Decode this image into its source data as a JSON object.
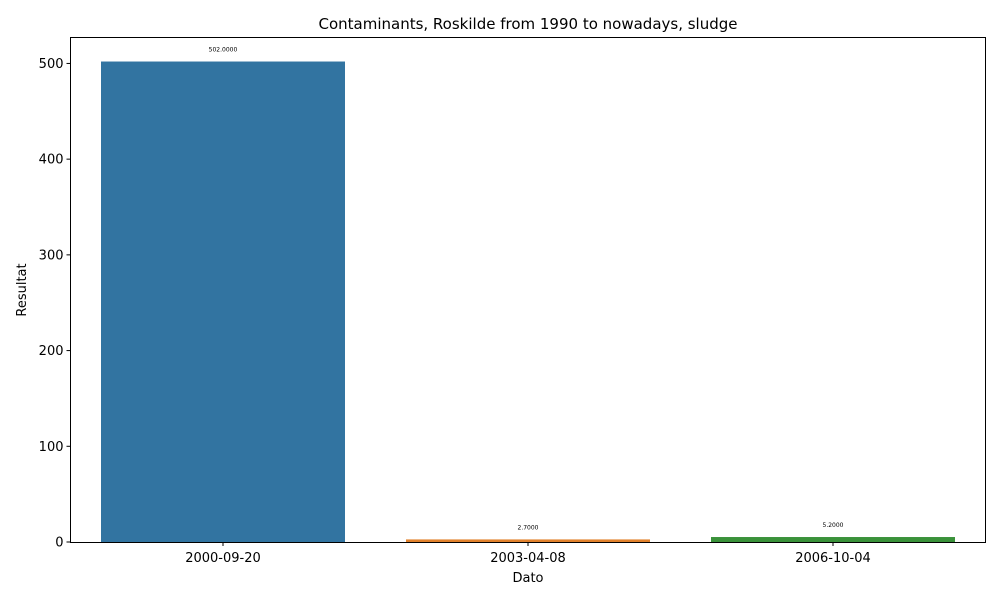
{
  "chart_data": {
    "type": "bar",
    "title": "Contaminants, Roskilde from 1990 to nowadays, sludge",
    "xlabel": "Dato",
    "ylabel": "Resultat",
    "categories": [
      "2000-09-20",
      "2003-04-08",
      "2006-10-04"
    ],
    "values": [
      502.0,
      2.7,
      5.2
    ],
    "data_labels": [
      "502.0000",
      "2.7000",
      "5.2000"
    ],
    "colors": [
      "#3274a1",
      "#e1812c",
      "#3a923a"
    ],
    "ylim": [
      0,
      527.1
    ],
    "yticks": [
      0,
      100,
      200,
      300,
      400,
      500
    ],
    "grid": false,
    "legend": "none"
  }
}
